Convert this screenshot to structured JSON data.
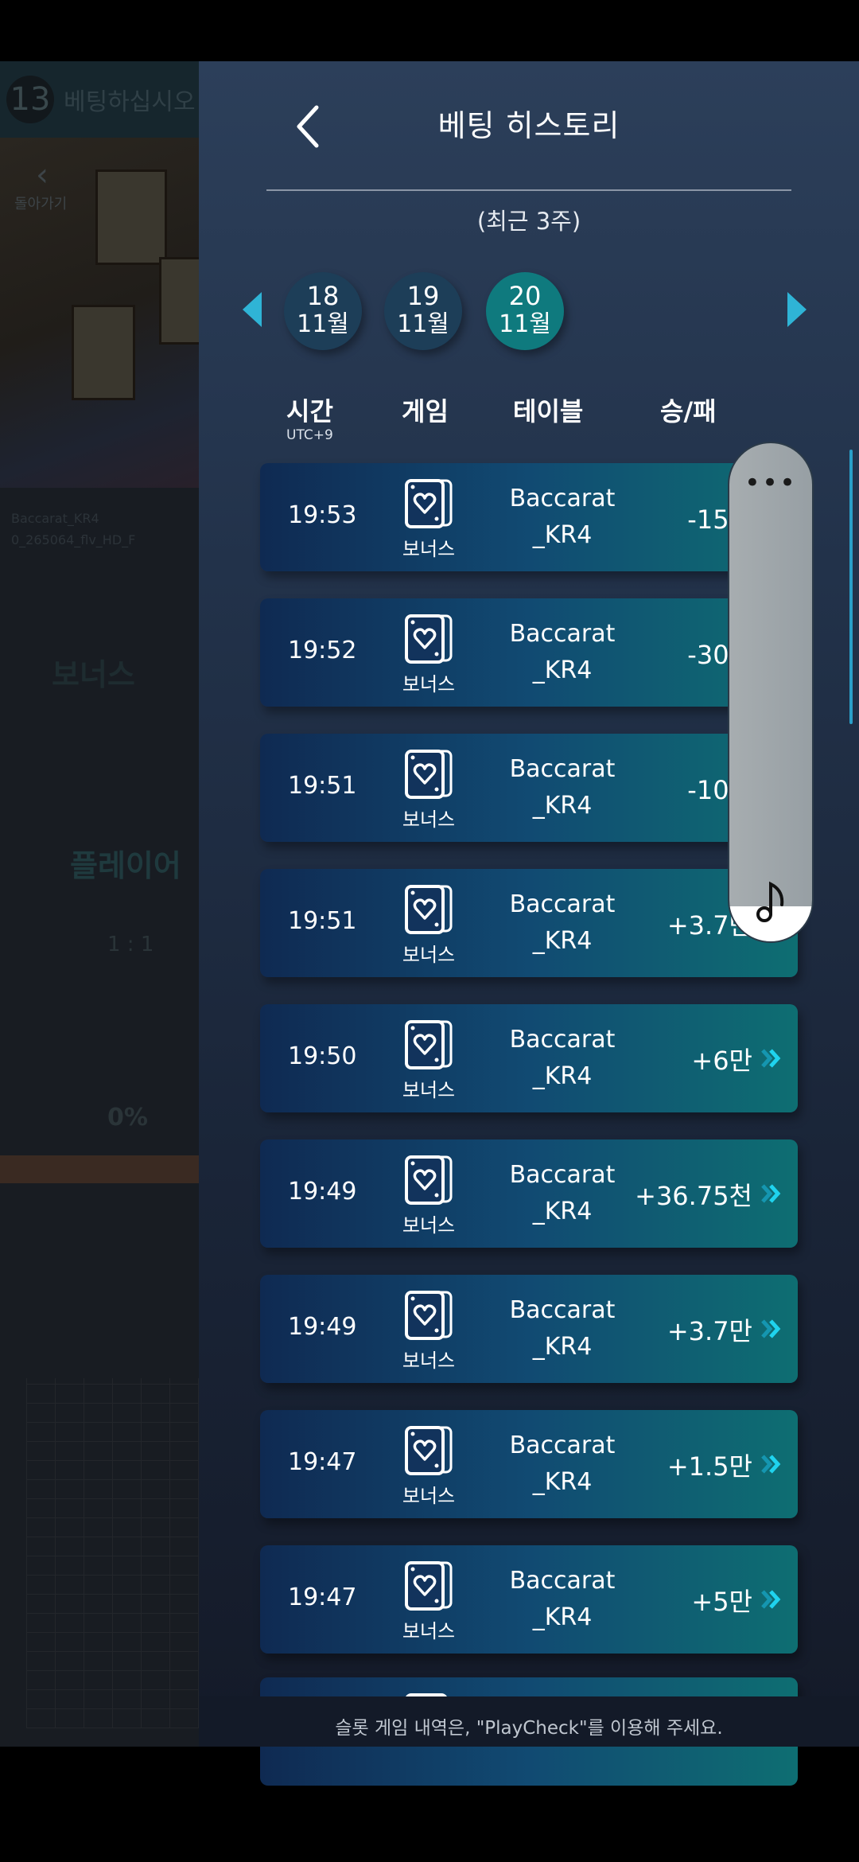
{
  "background_game": {
    "timer": "13",
    "status": "베팅하십시오",
    "back_label": "돌아가기",
    "table_name": "Baccarat_KR4",
    "stream_id": "0_265064_flv_HD_F",
    "bet_bonus": "보너스",
    "bet_player": "플레이어",
    "payout": "1 : 1",
    "percent": "0%"
  },
  "header": {
    "title": "베팅 히스토리",
    "subtitle": "(최근 3주)",
    "back_icon": "chevron-left-icon"
  },
  "dates": [
    {
      "day": "18",
      "month": "11월",
      "selected": false
    },
    {
      "day": "19",
      "month": "11월",
      "selected": false
    },
    {
      "day": "20",
      "month": "11월",
      "selected": true
    }
  ],
  "columns": {
    "time": "시간",
    "timezone": "UTC+9",
    "game": "게임",
    "table": "테이블",
    "result": "승/패"
  },
  "rows": [
    {
      "time": "19:53",
      "game": "보너스",
      "table1": "Baccarat",
      "table2": "_KR4",
      "result": "-15만"
    },
    {
      "time": "19:52",
      "game": "보너스",
      "table1": "Baccarat",
      "table2": "_KR4",
      "result": "-30만"
    },
    {
      "time": "19:51",
      "game": "보너스",
      "table1": "Baccarat",
      "table2": "_KR4",
      "result": "-10만"
    },
    {
      "time": "19:51",
      "game": "보너스",
      "table1": "Baccarat",
      "table2": "_KR4",
      "result": "+3.7만"
    },
    {
      "time": "19:50",
      "game": "보너스",
      "table1": "Baccarat",
      "table2": "_KR4",
      "result": "+6만"
    },
    {
      "time": "19:49",
      "game": "보너스",
      "table1": "Baccarat",
      "table2": "_KR4",
      "result": "+36.75천"
    },
    {
      "time": "19:49",
      "game": "보너스",
      "table1": "Baccarat",
      "table2": "_KR4",
      "result": "+3.7만"
    },
    {
      "time": "19:47",
      "game": "보너스",
      "table1": "Baccarat",
      "table2": "_KR4",
      "result": "+1.5만"
    },
    {
      "time": "19:47",
      "game": "보너스",
      "table1": "Baccarat",
      "table2": "_KR4",
      "result": "+5만"
    }
  ],
  "footer": "슬롯 게임 내역은, \"PlayCheck\"를 이용해 주세요.",
  "floating_menu": {
    "more_icon": "ellipsis-icon",
    "music_icon": "music-note-icon",
    "dots": "•••"
  },
  "colors": {
    "accent": "#2fb4d6",
    "selected_date": "#0f7a7e",
    "chevron": "#1fd3ee"
  }
}
